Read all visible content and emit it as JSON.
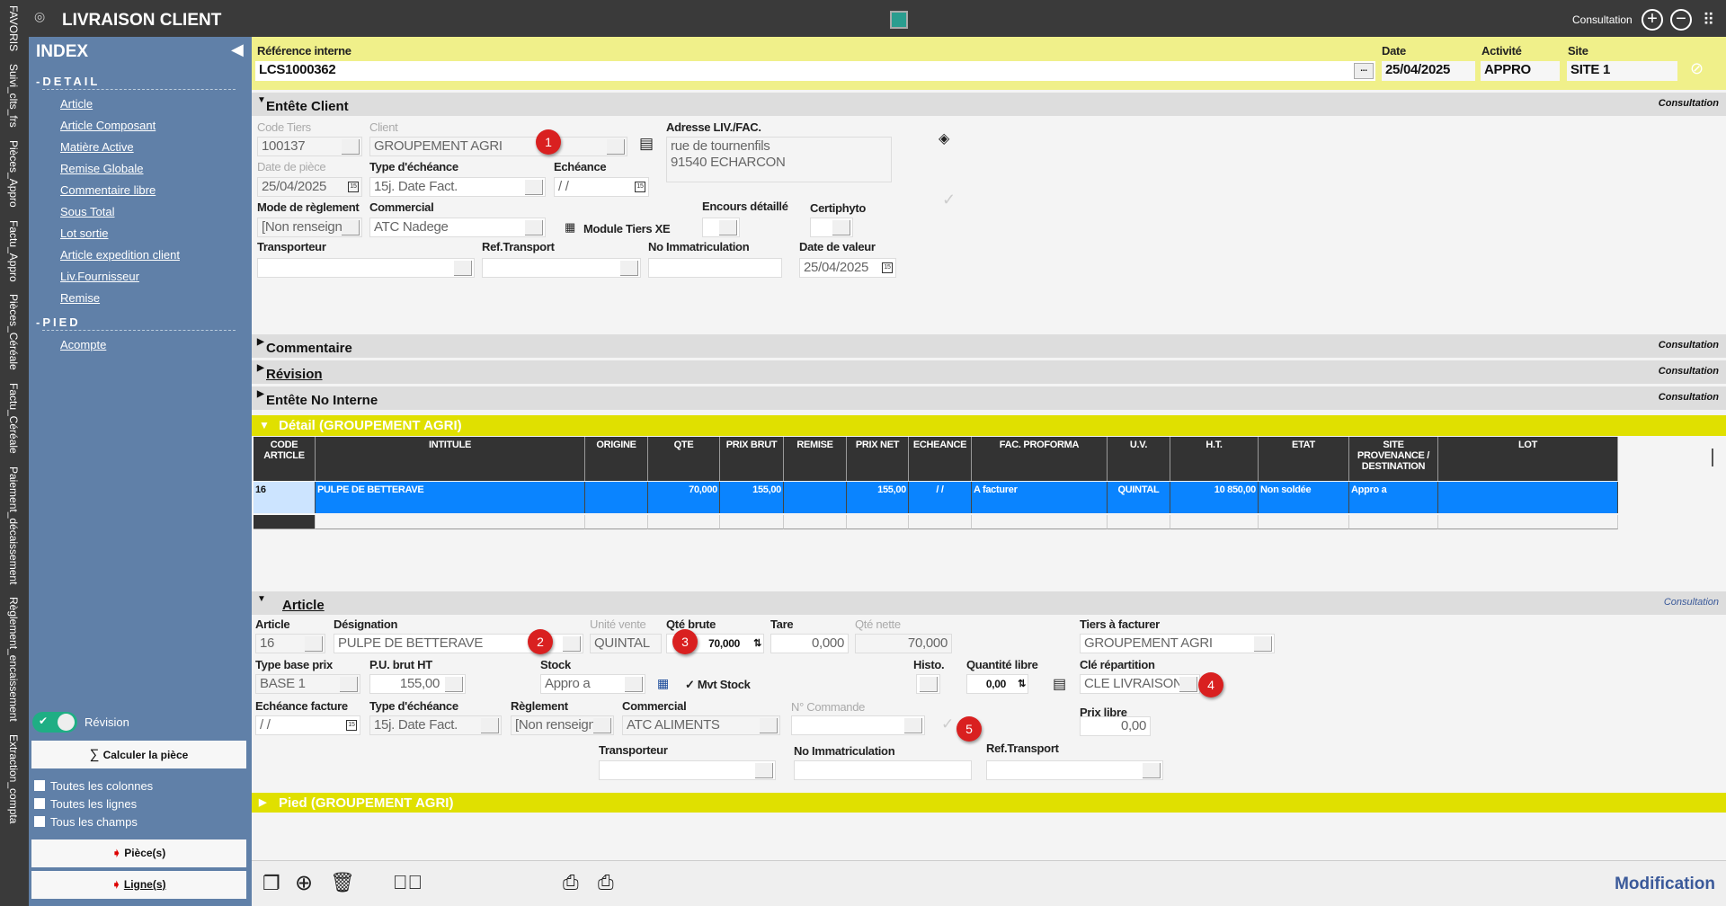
{
  "vstrip": [
    "FAVORIS",
    "Suivi_clts_frs",
    "Pièces_Appro",
    "Factu_Appro",
    "Pièces_Céréale",
    "Factu_Céréale",
    "Paiement_décaissement",
    "Règlement_encaissement",
    "Extraction_compta"
  ],
  "title": "LIVRAISON CLIENT",
  "mode_top": "Consultation",
  "sidebar": {
    "index": "INDEX",
    "detail": "-DETAIL",
    "items": [
      "Article",
      "Article Composant",
      "Matière Active",
      "Remise Globale",
      "Commentaire libre",
      "Sous Total",
      "Lot sortie",
      "Article expedition client",
      "Liv.Fournisseur",
      "Remise"
    ],
    "pied": "-PIED",
    "pied_items": [
      "Acompte"
    ],
    "revision": "Révision",
    "calc": "Calculer la pièce",
    "checks": [
      "Toutes les colonnes",
      "Toutes les lignes",
      "Tous les champs"
    ],
    "pieces": "Pièce(s)",
    "lignes": "Ligne(s)"
  },
  "header": {
    "ref_label": "Référence interne",
    "ref": "LCS1000362",
    "date_label": "Date",
    "date": "25/04/2025",
    "act_label": "Activité",
    "act": "APPRO",
    "site_label": "Site",
    "site": "SITE 1",
    "ellipsis": "..."
  },
  "entete": {
    "title": "Entête Client",
    "mode": "Consultation",
    "code_tiers_l": "Code Tiers",
    "code_tiers": "100137",
    "client_l": "Client",
    "client": "GROUPEMENT AGRI",
    "adresse_l": "Adresse LIV./FAC.",
    "adresse1": "rue de tournenfils",
    "adresse2": "91540  ECHARCON",
    "date_piece_l": "Date de pièce",
    "date_piece": "25/04/2025",
    "type_ech_l": "Type d'échéance",
    "type_ech": "15j. Date Fact.",
    "echeance_l": "Echéance",
    "echeance": " /  /",
    "mode_regl_l": "Mode de règlement",
    "mode_regl": "[Non renseigné]",
    "commercial_l": "Commercial",
    "commercial": "ATC Nadege",
    "module": "Module Tiers XE",
    "encours_l": "Encours détaillé",
    "certiphyto_l": "Certiphyto",
    "transporteur_l": "Transporteur",
    "ref_transport_l": "Ref.Transport",
    "immat_l": "No Immatriculation",
    "date_valeur_l": "Date de valeur",
    "date_valeur": "25/04/2025"
  },
  "sections": [
    {
      "title": "Commentaire",
      "mode": "Consultation"
    },
    {
      "title": "Révision",
      "mode": "Consultation"
    },
    {
      "title": "Entête No Interne",
      "mode": "Consultation"
    }
  ],
  "detail": {
    "title": "Détail (GROUPEMENT AGRI)",
    "columns": [
      "CODE ARTICLE",
      "INTITULE",
      "ORIGINE",
      "QTE",
      "PRIX BRUT",
      "REMISE",
      "PRIX NET",
      "ECHEANCE",
      "FAC. PROFORMA",
      "U.V.",
      "H.T.",
      "ETAT",
      "SITE PROVENANCE / DESTINATION",
      "LOT"
    ],
    "rows": [
      [
        "16",
        "PULPE DE BETTERAVE",
        "",
        "70,000",
        "155,00",
        "",
        "155,00",
        " /  /",
        "A facturer",
        "QUINTAL",
        "10 850,00",
        "Non soldée",
        "Appro a",
        ""
      ]
    ]
  },
  "article": {
    "title": "Article",
    "mode": "Consultation",
    "article_l": "Article",
    "article": "16",
    "designation_l": "Désignation",
    "designation": "PULPE DE BETTERAVE",
    "unite_l": "Unité vente",
    "unite": "QUINTAL",
    "qte_brute_l": "Qté brute",
    "qte_brute": "70,000",
    "tare_l": "Tare",
    "tare": "0,000",
    "qte_nette_l": "Qté nette",
    "qte_nette": "70,000",
    "tiers_l": "Tiers à facturer",
    "tiers": "GROUPEMENT AGRI",
    "type_base_l": "Type base prix",
    "type_base": "BASE 1",
    "pu_l": "P.U. brut HT",
    "pu": "155,00",
    "stock_l": "Stock",
    "stock": "Appro a",
    "mvt_stock": "Mvt Stock",
    "histo_l": "Histo.",
    "qte_libre_l": "Quantité libre",
    "qte_libre": "0,00",
    "cle_l": "Clé répartition",
    "cle": "CLE LIVRAISON",
    "ech_fact_l": "Echéance facture",
    "ech_fact": " /  /",
    "type_ech_l": "Type d'échéance",
    "type_ech": "15j. Date Fact.",
    "reglement_l": "Règlement",
    "reglement": "[Non renseigné]",
    "commercial_l": "Commercial",
    "commercial": "ATC ALIMENTS",
    "commande_l": "N° Commande",
    "prix_libre_l": "Prix libre",
    "prix_libre": "0,00",
    "transporteur_l": "Transporteur",
    "immat_l": "No Immatriculation",
    "ref_transport_l": "Ref.Transport"
  },
  "pied": {
    "title": "Pied (GROUPEMENT AGRI)"
  },
  "badges": [
    "1",
    "2",
    "3",
    "4",
    "5"
  ],
  "footer": {
    "mode": "Modification"
  }
}
